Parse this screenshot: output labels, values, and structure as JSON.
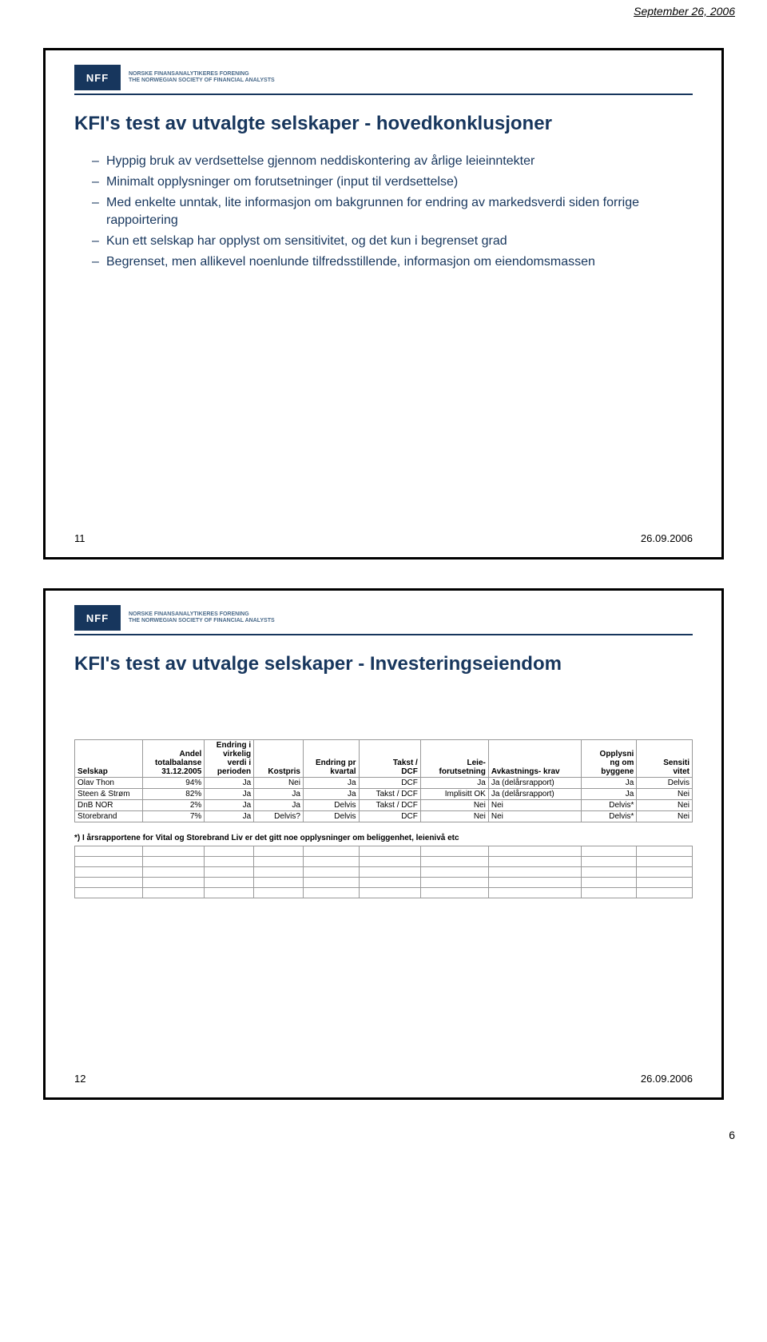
{
  "page": {
    "header_date": "September 26, 2006",
    "footer_page": "6"
  },
  "logo": {
    "abbr": "NFF",
    "line1": "NORSKE FINANSANALYTIKERES FORENING",
    "line2": "THE NORWEGIAN SOCIETY OF FINANCIAL ANALYSTS"
  },
  "slide11": {
    "title": "KFI's test av utvalgte selskaper - hovedkonklusjoner",
    "bullets": [
      "Hyppig bruk av verdsettelse gjennom neddiskontering av årlige leieinntekter",
      "Minimalt opplysninger om forutsetninger (input til verdsettelse)",
      "Med enkelte unntak, lite informasjon om bakgrunnen for endring av markedsverdi siden forrige rappoirtering",
      "Kun ett selskap har opplyst om sensitivitet, og det kun i begrenset grad",
      "Begrenset, men allikevel noenlunde tilfredsstillende, informasjon om eiendomsmassen"
    ],
    "num": "11",
    "date": "26.09.2006"
  },
  "slide12": {
    "title": "KFI's test av utvalge selskaper - Investeringseiendom",
    "num": "12",
    "date": "26.09.2006",
    "columns": [
      "Selskap",
      "Andel totalbalanse 31.12.2005",
      "Endring i virkelig verdi i perioden",
      "Kostpris",
      "Endring pr kvartal",
      "Takst / DCF",
      "Leie-forutsetning",
      "Avkastnings- krav",
      "Opplysni ng om byggene",
      "Sensiti vitet"
    ],
    "rows": [
      [
        "Olav Thon",
        "94%",
        "Ja",
        "Nei",
        "Ja",
        "DCF",
        "Ja",
        "Ja (delårsrapport)",
        "Ja",
        "Delvis"
      ],
      [
        "Steen & Strøm",
        "82%",
        "Ja",
        "Ja",
        "Ja",
        "Takst / DCF",
        "Implisitt OK",
        "Ja (delårsrapport)",
        "Ja",
        "Nei"
      ],
      [
        "DnB NOR",
        "2%",
        "Ja",
        "Ja",
        "Delvis",
        "Takst / DCF",
        "Nei",
        "Nei",
        "Delvis*",
        "Nei"
      ],
      [
        "Storebrand",
        "7%",
        "Ja",
        "Delvis?",
        "Delvis",
        "DCF",
        "Nei",
        "Nei",
        "Delvis*",
        "Nei"
      ]
    ],
    "footnote": "*) I årsrapportene for Vital og Storebrand Liv er det gitt noe opplysninger om beliggenhet, leienivå etc"
  }
}
